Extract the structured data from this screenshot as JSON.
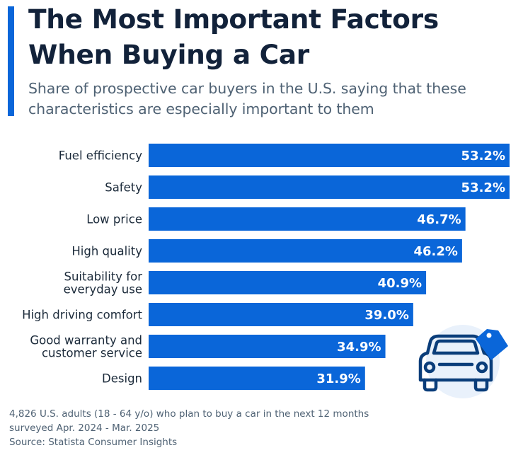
{
  "header": {
    "title_line1": "The Most Important Factors",
    "title_line2": "When Buying a Car",
    "subtitle_line1": "Share of prospective car buyers in the U.S. saying that these",
    "subtitle_line2": "characteristics are especially important to them"
  },
  "chart_data": {
    "type": "bar",
    "orientation": "horizontal",
    "title": "The Most Important Factors When Buying a Car",
    "subtitle": "Share of prospective car buyers in the U.S. saying that these characteristics are especially important to them",
    "xlabel": "",
    "ylabel": "",
    "unit": "%",
    "xlim": [
      0,
      53.2
    ],
    "grid": false,
    "bar_color": "#0a66d9",
    "categories": [
      [
        "Fuel efficiency"
      ],
      [
        "Safety"
      ],
      [
        "Low price"
      ],
      [
        "High quality"
      ],
      [
        "Suitability for",
        "everyday use"
      ],
      [
        "High driving comfort"
      ],
      [
        "Good warranty and",
        "customer service"
      ],
      [
        "Design"
      ]
    ],
    "values": [
      53.2,
      53.2,
      46.7,
      46.2,
      40.9,
      39.0,
      34.9,
      31.9
    ],
    "value_labels": [
      "53.2%",
      "53.2%",
      "46.7%",
      "46.2%",
      "40.9%",
      "39.0%",
      "34.9%",
      "31.9%"
    ]
  },
  "illustration": {
    "icon": "car-with-price-tag-icon",
    "colors": {
      "circle": "#e9f1fb",
      "outline": "#0a3d7a",
      "tag": "#0a66d9"
    }
  },
  "footnote": {
    "line1": "4,826 U.S. adults (18 - 64 y/o) who plan to buy a car in the next 12 months",
    "line2": "surveyed Apr. 2024 - Mar. 2025",
    "source": "Source: Statista Consumer Insights"
  }
}
